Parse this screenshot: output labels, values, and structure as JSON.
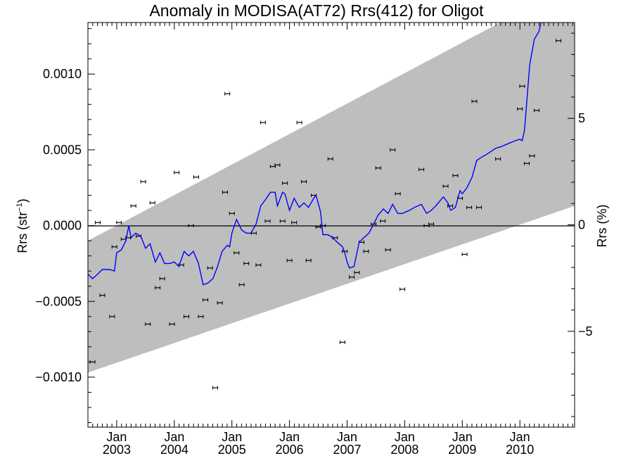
{
  "chart_data": {
    "type": "line",
    "title": "Anomaly in MODISA(AT72) Rrs(412) for Oligot",
    "ylabel_left": "Rrs (str",
    "ylabel_left_sup": "−1",
    "ylabel_left_end": ")",
    "ylabel_right": "Rrs (%)",
    "xlim": [
      2002.5,
      2010.95
    ],
    "ylim_left": [
      -0.00133,
      0.00134
    ],
    "ylim_right": [
      -9.5,
      9.5
    ],
    "left_ticks": [
      {
        "v": 0.001,
        "label": "0.0010"
      },
      {
        "v": 0.0005,
        "label": "0.0005"
      },
      {
        "v": 0.0,
        "label": "0.0000"
      },
      {
        "v": -0.0005,
        "label": "−0.0005"
      },
      {
        "v": -0.001,
        "label": "−0.0010"
      }
    ],
    "right_ticks": [
      {
        "v": 5,
        "label": "5"
      },
      {
        "v": 0,
        "label": "0"
      },
      {
        "v": -5,
        "label": "−5"
      }
    ],
    "x_ticks": [
      {
        "v": 2003.0,
        "month": "Jan",
        "year": "2003"
      },
      {
        "v": 2004.0,
        "month": "Jan",
        "year": "2004"
      },
      {
        "v": 2005.0,
        "month": "Jan",
        "year": "2005"
      },
      {
        "v": 2006.0,
        "month": "Jan",
        "year": "2006"
      },
      {
        "v": 2007.0,
        "month": "Jan",
        "year": "2007"
      },
      {
        "v": 2008.0,
        "month": "Jan",
        "year": "2008"
      },
      {
        "v": 2009.0,
        "month": "Jan",
        "year": "2009"
      },
      {
        "v": 2010.0,
        "month": "Jan",
        "year": "2010"
      }
    ],
    "band": {
      "color": "#bebebe",
      "upper": [
        [
          2002.5,
          -0.0001
        ],
        [
          2010.95,
          0.0016
        ]
      ],
      "lower": [
        [
          2002.5,
          -0.00097
        ],
        [
          2010.95,
          0.00013
        ]
      ]
    },
    "zero_line": 0,
    "series": [
      {
        "kind": "scatter-errorbar",
        "color": "#000000",
        "points": [
          [
            2002.58,
            -0.0009
          ],
          [
            2002.67,
            2e-05
          ],
          [
            2002.75,
            -0.00046
          ],
          [
            2002.92,
            -0.0006
          ],
          [
            2002.96,
            -0.00014
          ],
          [
            2003.04,
            2e-05
          ],
          [
            2003.12,
            -9e-05
          ],
          [
            2003.2,
            -8e-05
          ],
          [
            2003.29,
            0.00013
          ],
          [
            2003.38,
            -7e-05
          ],
          [
            2003.46,
            0.00029
          ],
          [
            2003.54,
            -0.00065
          ],
          [
            2003.62,
            0.00015
          ],
          [
            2003.71,
            -0.00041
          ],
          [
            2003.79,
            -0.00035
          ],
          [
            2003.96,
            -0.00065
          ],
          [
            2004.04,
            0.00035
          ],
          [
            2004.12,
            -0.00026
          ],
          [
            2004.21,
            -0.0006
          ],
          [
            2004.29,
            0.0
          ],
          [
            2004.38,
            0.00032
          ],
          [
            2004.46,
            -0.0006
          ],
          [
            2004.54,
            -0.00049
          ],
          [
            2004.62,
            -0.00028
          ],
          [
            2004.71,
            -0.00107
          ],
          [
            2004.79,
            -0.00051
          ],
          [
            2004.88,
            0.00022
          ],
          [
            2004.92,
            0.00087
          ],
          [
            2005.0,
            8e-05
          ],
          [
            2005.08,
            -0.00018
          ],
          [
            2005.17,
            -0.00039
          ],
          [
            2005.25,
            -0.00025
          ],
          [
            2005.38,
            -5e-05
          ],
          [
            2005.46,
            -0.00026
          ],
          [
            2005.54,
            0.00068
          ],
          [
            2005.62,
            3e-05
          ],
          [
            2005.71,
            0.00039
          ],
          [
            2005.79,
            0.0004
          ],
          [
            2005.88,
            3e-05
          ],
          [
            2005.92,
            0.00028
          ],
          [
            2006.0,
            -0.00023
          ],
          [
            2006.08,
            2e-05
          ],
          [
            2006.17,
            0.00068
          ],
          [
            2006.25,
            0.00029
          ],
          [
            2006.33,
            -0.00023
          ],
          [
            2006.42,
            0.0002
          ],
          [
            2006.5,
            -1e-05
          ],
          [
            2006.58,
            0.0
          ],
          [
            2006.71,
            0.00044
          ],
          [
            2006.79,
            -8e-05
          ],
          [
            2006.92,
            -0.00077
          ],
          [
            2006.96,
            -0.00017
          ],
          [
            2007.08,
            -0.00034
          ],
          [
            2007.17,
            -0.00031
          ],
          [
            2007.25,
            -0.00011
          ],
          [
            2007.33,
            -0.00017
          ],
          [
            2007.46,
            1e-05
          ],
          [
            2007.54,
            0.00038
          ],
          [
            2007.62,
            3e-05
          ],
          [
            2007.71,
            -0.00016
          ],
          [
            2007.79,
            0.0005
          ],
          [
            2007.88,
            0.00021
          ],
          [
            2007.96,
            -0.00042
          ],
          [
            2008.29,
            0.00037
          ],
          [
            2008.38,
            0.0
          ],
          [
            2008.46,
            1e-05
          ],
          [
            2008.71,
            0.00026
          ],
          [
            2008.79,
            0.00013
          ],
          [
            2008.88,
            0.00033
          ],
          [
            2008.96,
            0.00018
          ],
          [
            2009.04,
            -0.00019
          ],
          [
            2009.12,
            0.00012
          ],
          [
            2009.21,
            0.00082
          ],
          [
            2009.29,
            0.00012
          ],
          [
            2009.62,
            0.00044
          ],
          [
            2010.0,
            0.00077
          ],
          [
            2010.04,
            0.00092
          ],
          [
            2010.12,
            0.00041
          ],
          [
            2010.21,
            0.00046
          ],
          [
            2010.29,
            0.00076
          ],
          [
            2010.67,
            0.00122
          ]
        ]
      },
      {
        "kind": "line",
        "color": "#0000ff",
        "points": [
          [
            2002.5,
            -0.00032
          ],
          [
            2002.58,
            -0.00035
          ],
          [
            2002.67,
            -0.00032
          ],
          [
            2002.75,
            -0.00029
          ],
          [
            2002.88,
            -0.00029
          ],
          [
            2002.96,
            -0.0003
          ],
          [
            2003.0,
            -0.00018
          ],
          [
            2003.08,
            -0.00016
          ],
          [
            2003.16,
            -0.0001
          ],
          [
            2003.21,
            0.0
          ],
          [
            2003.25,
            -8e-05
          ],
          [
            2003.33,
            -5e-05
          ],
          [
            2003.42,
            -7e-05
          ],
          [
            2003.5,
            -0.00015
          ],
          [
            2003.58,
            -0.00012
          ],
          [
            2003.67,
            -0.00024
          ],
          [
            2003.75,
            -0.00018
          ],
          [
            2003.83,
            -0.00025
          ],
          [
            2003.92,
            -0.00025
          ],
          [
            2004.0,
            -0.00024
          ],
          [
            2004.08,
            -0.00027
          ],
          [
            2004.17,
            -0.00017
          ],
          [
            2004.25,
            -0.0002
          ],
          [
            2004.33,
            -0.00017
          ],
          [
            2004.42,
            -0.00025
          ],
          [
            2004.5,
            -0.00039
          ],
          [
            2004.58,
            -0.00038
          ],
          [
            2004.67,
            -0.00035
          ],
          [
            2004.75,
            -0.00027
          ],
          [
            2004.83,
            -0.00017
          ],
          [
            2004.92,
            -0.00013
          ],
          [
            2004.96,
            -0.00014
          ],
          [
            2005.0,
            -5e-05
          ],
          [
            2005.08,
            4e-05
          ],
          [
            2005.17,
            -3e-05
          ],
          [
            2005.25,
            -5e-05
          ],
          [
            2005.33,
            -5e-05
          ],
          [
            2005.42,
            1e-05
          ],
          [
            2005.5,
            0.00013
          ],
          [
            2005.58,
            0.00017
          ],
          [
            2005.67,
            0.00022
          ],
          [
            2005.75,
            0.00022
          ],
          [
            2005.79,
            0.00013
          ],
          [
            2005.88,
            0.00022
          ],
          [
            2005.92,
            0.00021
          ],
          [
            2006.0,
            0.0001
          ],
          [
            2006.08,
            0.00018
          ],
          [
            2006.17,
            0.00012
          ],
          [
            2006.25,
            0.00015
          ],
          [
            2006.33,
            0.00012
          ],
          [
            2006.42,
            0.00018
          ],
          [
            2006.46,
            0.0002
          ],
          [
            2006.54,
            9e-05
          ],
          [
            2006.58,
            -6e-05
          ],
          [
            2006.67,
            -6e-05
          ],
          [
            2006.75,
            -8e-05
          ],
          [
            2006.83,
            -0.00011
          ],
          [
            2006.92,
            -0.00014
          ],
          [
            2006.96,
            -0.00018
          ],
          [
            2007.0,
            -0.00024
          ],
          [
            2007.04,
            -0.00028
          ],
          [
            2007.12,
            -0.00027
          ],
          [
            2007.21,
            -0.00011
          ],
          [
            2007.29,
            -8e-05
          ],
          [
            2007.38,
            -5e-05
          ],
          [
            2007.46,
            1e-05
          ],
          [
            2007.54,
            7e-05
          ],
          [
            2007.63,
            0.00011
          ],
          [
            2007.71,
            8e-05
          ],
          [
            2007.79,
            0.00014
          ],
          [
            2007.88,
            8e-05
          ],
          [
            2007.96,
            8e-05
          ],
          [
            2008.08,
            0.0001
          ],
          [
            2008.17,
            0.00012
          ],
          [
            2008.29,
            0.00014
          ],
          [
            2008.38,
            8e-05
          ],
          [
            2008.46,
            0.0001
          ],
          [
            2008.54,
            0.00013
          ],
          [
            2008.67,
            0.00019
          ],
          [
            2008.75,
            0.00015
          ],
          [
            2008.8,
            0.0001
          ],
          [
            2008.88,
            0.00012
          ],
          [
            2008.96,
            0.00023
          ],
          [
            2009.0,
            0.00021
          ],
          [
            2009.08,
            0.00025
          ],
          [
            2009.17,
            0.00032
          ],
          [
            2009.25,
            0.00043
          ],
          [
            2009.33,
            0.00045
          ],
          [
            2009.42,
            0.00047
          ],
          [
            2009.5,
            0.00049
          ],
          [
            2009.58,
            0.00051
          ],
          [
            2009.67,
            0.00052
          ],
          [
            2009.79,
            0.00054
          ],
          [
            2009.92,
            0.00056
          ],
          [
            2010.0,
            0.00057
          ],
          [
            2010.04,
            0.00056
          ],
          [
            2010.08,
            0.00063
          ],
          [
            2010.12,
            0.00082
          ],
          [
            2010.17,
            0.00106
          ],
          [
            2010.25,
            0.00123
          ],
          [
            2010.33,
            0.00128
          ],
          [
            2010.38,
            0.00136
          ]
        ]
      }
    ]
  }
}
